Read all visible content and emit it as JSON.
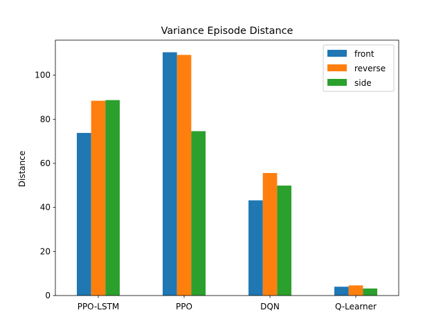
{
  "chart_data": {
    "type": "bar",
    "title": "Variance Episode Distance",
    "xlabel": "",
    "ylabel": "Distance",
    "categories": [
      "PPO-LSTM",
      "PPO",
      "DQN",
      "Q-Learner"
    ],
    "series": [
      {
        "name": "front",
        "color": "#1f77b4",
        "values": [
          73.8,
          110.4,
          43.2,
          4.0
        ]
      },
      {
        "name": "reverse",
        "color": "#ff7f0e",
        "values": [
          88.4,
          109.2,
          55.6,
          4.6
        ]
      },
      {
        "name": "side",
        "color": "#2ca02c",
        "values": [
          88.7,
          74.6,
          49.9,
          3.2
        ]
      }
    ],
    "ylim": [
      0,
      115.9
    ],
    "yticks": [
      0,
      20,
      40,
      60,
      80,
      100
    ],
    "grid": false,
    "legend_position": "top-right"
  }
}
